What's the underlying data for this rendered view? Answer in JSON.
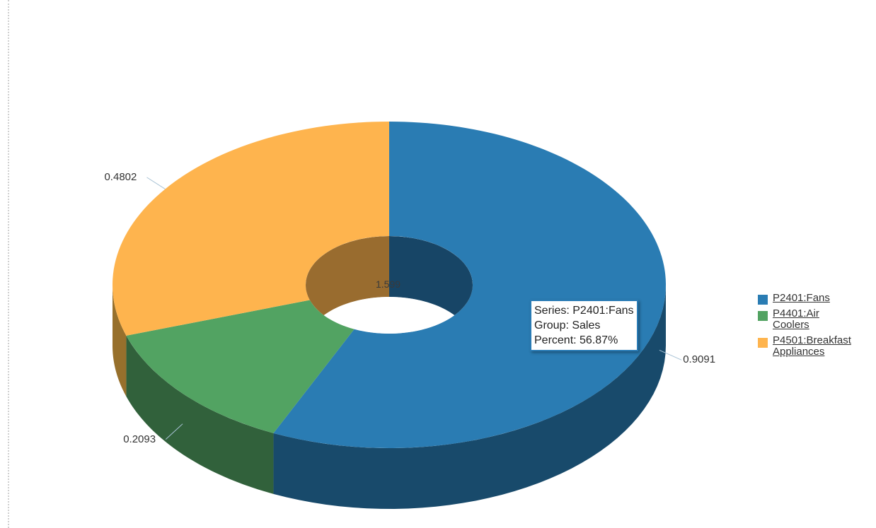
{
  "chart_data": {
    "type": "pie",
    "variant": "3d-donut",
    "slices": [
      {
        "name": "P2401:Fans",
        "value": 0.9091,
        "color": "#2a7cb3",
        "side_color": "#184a6b",
        "inner_color": "#174566"
      },
      {
        "name": "P4401:Air Coolers",
        "value": 0.2093,
        "color": "#52a362",
        "side_color": "#31613b",
        "inner_color": "#2f5c38"
      },
      {
        "name": "P4501:Breakfast Appliances",
        "value": 0.4802,
        "color": "#feb44e",
        "side_color": "#97702c",
        "inner_color": "#996c2f"
      }
    ],
    "total_label": "1.599",
    "legend": {
      "position": "right",
      "entries": [
        {
          "label": "P2401:Fans",
          "color": "#2a7cb3"
        },
        {
          "label": "P4401:Air Coolers",
          "color": "#52a362"
        },
        {
          "label": "P4501:Breakfast Appliances",
          "color": "#feb44e"
        }
      ]
    },
    "data_labels": [
      "0.9091",
      "0.2093",
      "0.4802"
    ],
    "tooltip": {
      "series": "Series: P2401:Fans",
      "group": "Group: Sales",
      "percent": "Percent: 56.87%"
    }
  }
}
